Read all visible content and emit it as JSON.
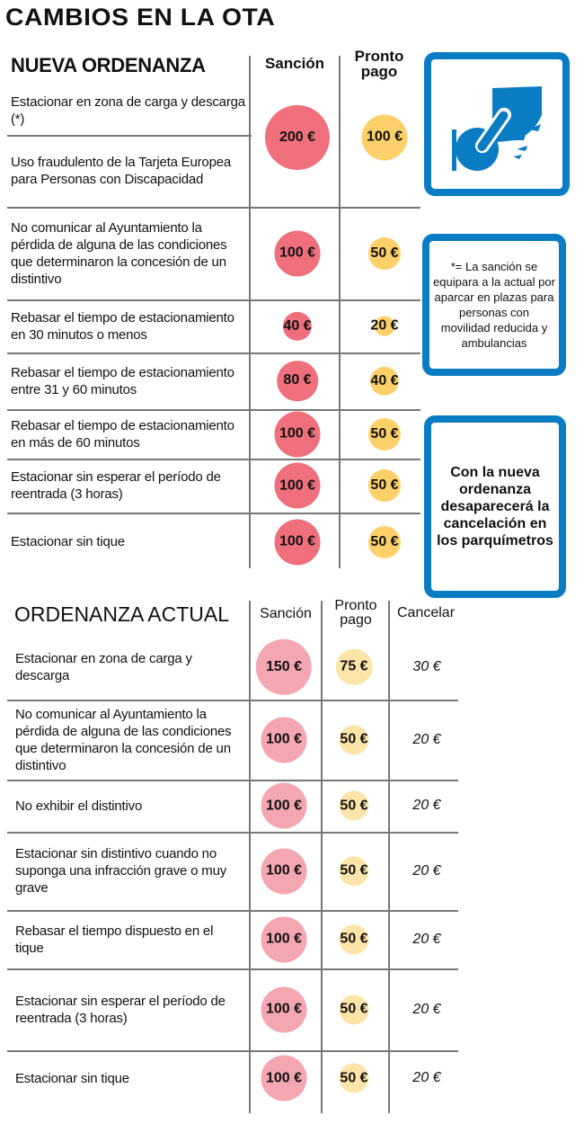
{
  "title": "CAMBIOS EN LA OTA",
  "colors": {
    "blue": "#0a7cc4",
    "new_sancion": "#ef6f7d",
    "new_pronto": "#fdd06a",
    "old_sancion": "#f4a6b1",
    "old_pronto": "#fde4a8"
  },
  "nueva": {
    "heading": "NUEVA ORDENANZA",
    "col_sancion": "Sanción",
    "col_pronto": "Pronto pago",
    "rows": [
      {
        "items": [
          "Estacionar en zona de carga y descarga (*)",
          "Uso fraudulento de la Tarjeta Europea para Personas con Discapacidad"
        ],
        "sancion": "200 €",
        "pronto": "100 €",
        "sancion_value": 200,
        "pronto_value": 100
      },
      {
        "items": [
          "No comunicar al Ayuntamiento la pérdida de alguna de las condiciones que determinaron la concesión de un distintivo"
        ],
        "sancion": "100 €",
        "pronto": "50 €",
        "sancion_value": 100,
        "pronto_value": 50
      },
      {
        "items": [
          "Rebasar el tiempo de estacionamiento en 30 minutos o menos"
        ],
        "sancion": "40 €",
        "pronto": "20 €",
        "sancion_value": 40,
        "pronto_value": 20
      },
      {
        "items": [
          "Rebasar el tiempo de estacionamiento entre 31 y 60 minutos"
        ],
        "sancion": "80 €",
        "pronto": "40 €",
        "sancion_value": 80,
        "pronto_value": 40
      },
      {
        "items": [
          "Rebasar el tiempo de estacionamiento en más de 60 minutos"
        ],
        "sancion": "100 €",
        "pronto": "50 €",
        "sancion_value": 100,
        "pronto_value": 50
      },
      {
        "items": [
          "Estacionar sin esperar el período de reentrada (3 horas)"
        ],
        "sancion": "100 €",
        "pronto": "50 €",
        "sancion_value": 100,
        "pronto_value": 50
      },
      {
        "items": [
          "Estacionar sin tique"
        ],
        "sancion": "100 €",
        "pronto": "50 €",
        "sancion_value": 100,
        "pronto_value": 50
      }
    ]
  },
  "sidebar": {
    "icon": "disabled-parking-hand-icon",
    "note": "*= La sanción se equipara a la actual por aparcar en plazas para personas con movilidad reducida y ambulancias",
    "cancel_note": "Con la nueva ordenanza desaparecerá la cancelación en los parquímetros"
  },
  "actual": {
    "heading": "ORDENANZA ACTUAL",
    "col_sancion": "Sanción",
    "col_pronto": "Pronto pago",
    "col_cancelar": "Cancelar",
    "rows": [
      {
        "text": "Estacionar en zona de carga y descarga",
        "sancion": "150 €",
        "pronto": "75 €",
        "cancelar": "30 €",
        "sancion_value": 150,
        "pronto_value": 75
      },
      {
        "text": "No comunicar al Ayuntamiento la pérdida de alguna de las condiciones que determinaron la concesión de un distintivo",
        "sancion": "100 €",
        "pronto": "50 €",
        "cancelar": "20 €",
        "sancion_value": 100,
        "pronto_value": 50
      },
      {
        "text": "No exhibir el distintivo",
        "sancion": "100 €",
        "pronto": "50 €",
        "cancelar": "20 €",
        "sancion_value": 100,
        "pronto_value": 50
      },
      {
        "text": "Estacionar sin distintivo cuando no suponga una infracción grave o muy grave",
        "sancion": "100 €",
        "pronto": "50 €",
        "cancelar": "20 €",
        "sancion_value": 100,
        "pronto_value": 50
      },
      {
        "text": "Rebasar el tiempo dispuesto en el tique",
        "sancion": "100 €",
        "pronto": "50 €",
        "cancelar": "20 €",
        "sancion_value": 100,
        "pronto_value": 50
      },
      {
        "text": "Estacionar sin esperar el período de reentrada (3 horas)",
        "sancion": "100 €",
        "pronto": "50 €",
        "cancelar": "20 €",
        "sancion_value": 100,
        "pronto_value": 50
      },
      {
        "text": "Estacionar sin tique",
        "sancion": "100 €",
        "pronto": "50 €",
        "cancelar": "20 €",
        "sancion_value": 100,
        "pronto_value": 50
      }
    ]
  }
}
